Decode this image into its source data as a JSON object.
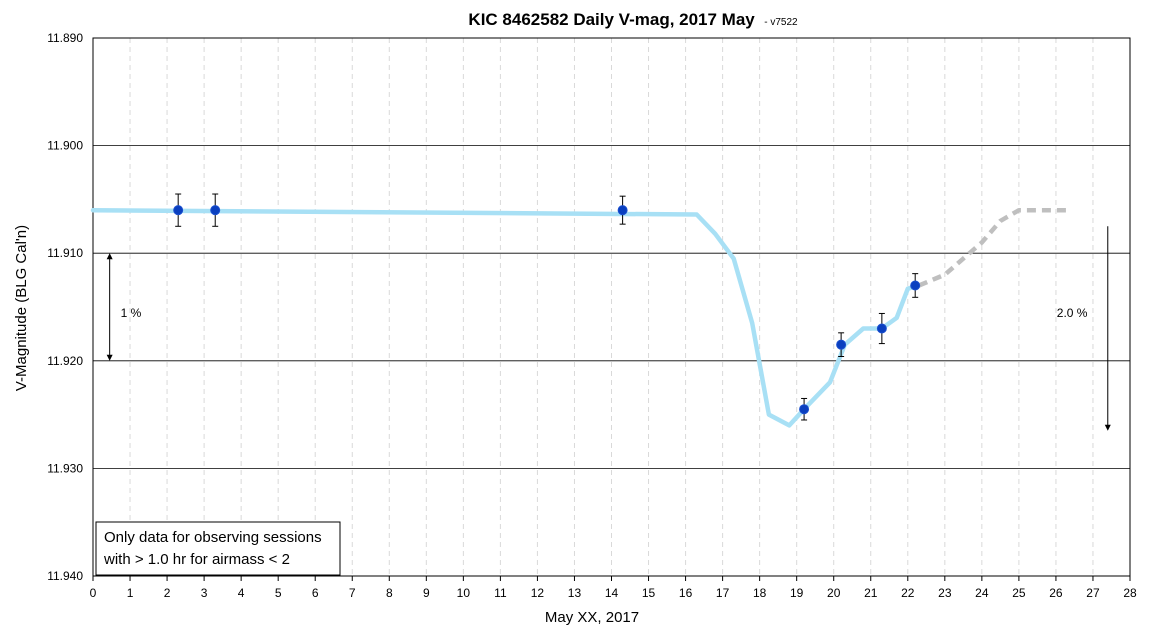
{
  "chart_data": {
    "type": "line",
    "title": "KIC 8462582 Daily V-mag, 2017 May",
    "subtitle": "- v7522",
    "xlabel": "May XX, 2017",
    "ylabel": "V-Magnitude (BLG Cal'n)",
    "xlim": [
      0,
      28
    ],
    "ylim": [
      11.89,
      11.94
    ],
    "y_inverted": true,
    "x_ticks": [
      "0",
      "1",
      "2",
      "3",
      "4",
      "5",
      "6",
      "7",
      "8",
      "9",
      "10",
      "11",
      "12",
      "13",
      "14",
      "15",
      "16",
      "17",
      "18",
      "19",
      "20",
      "21",
      "22",
      "23",
      "24",
      "25",
      "26",
      "27",
      "28"
    ],
    "y_ticks": [
      "11.890",
      "11.900",
      "11.910",
      "11.920",
      "11.930",
      "11.940"
    ],
    "grid": true,
    "series": [
      {
        "kind": "trend",
        "color": "#a8e0f5",
        "x": [
          0,
          16.3,
          16.8,
          17.3,
          17.8,
          18.25,
          18.8,
          19.2,
          19.9,
          20.3,
          20.8,
          21.3,
          21.7,
          22.0,
          22.3
        ],
        "y": [
          11.906,
          11.9064,
          11.9082,
          11.9105,
          11.9165,
          11.925,
          11.926,
          11.9245,
          11.922,
          11.9185,
          11.917,
          11.917,
          11.916,
          11.9133,
          11.913
        ]
      },
      {
        "kind": "projection",
        "color": "#bfbfbf",
        "dashed": true,
        "x": [
          22.3,
          23.0,
          24.0,
          24.5,
          25.0,
          25.5,
          26.3
        ],
        "y": [
          11.913,
          11.912,
          11.909,
          11.907,
          11.906,
          11.906,
          11.906
        ]
      },
      {
        "kind": "points",
        "color": "#0a3fbf",
        "x": [
          2.3,
          3.3,
          14.3,
          19.2,
          20.2,
          21.3,
          22.2
        ],
        "y": [
          11.906,
          11.906,
          11.906,
          11.9245,
          11.9185,
          11.917,
          11.913
        ],
        "err": [
          0.0015,
          0.0015,
          0.0013,
          0.001,
          0.0011,
          0.0014,
          0.0011
        ]
      }
    ],
    "annotations": {
      "note_line1": "Only data for observing sessions",
      "note_line2": "with > 1.0 hr for airmass < 2",
      "left_arrow": {
        "label": "1 %",
        "x": 0.45,
        "y_from": 11.91,
        "y_to": 11.92
      },
      "right_arrow": {
        "label": "2.0 %",
        "x": 27.4,
        "y_from": 11.9075,
        "y_to": 11.9265
      }
    }
  }
}
